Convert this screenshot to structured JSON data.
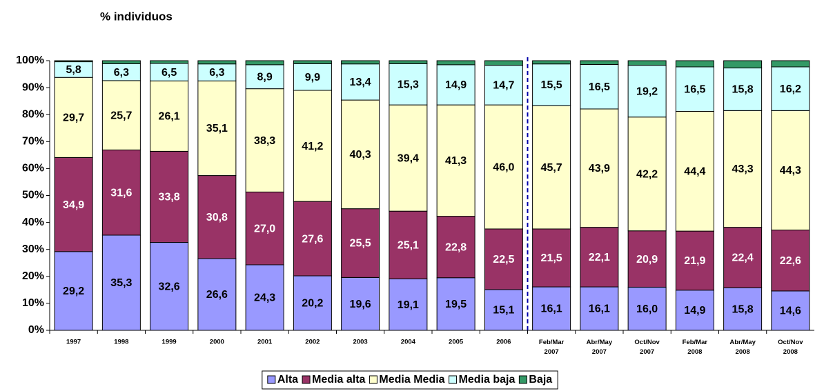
{
  "chart_data": {
    "type": "stacked-bar",
    "title": "% individuos",
    "categories": [
      "1997",
      "1998",
      "1999",
      "2000",
      "2001",
      "2002",
      "2003",
      "2004",
      "2005",
      "2006",
      "Feb/Mar 2007",
      "Abr/May 2007",
      "Oct/Nov 2007",
      "Feb/Mar 2008",
      "Abr/May 2008",
      "Oct/Nov 2008"
    ],
    "series": [
      {
        "name": "Alta",
        "color": "#9999ff",
        "values": [
          29.2,
          35.3,
          32.6,
          26.6,
          24.3,
          20.2,
          19.6,
          19.1,
          19.5,
          15.1,
          16.1,
          16.1,
          16.0,
          14.9,
          15.8,
          14.6
        ],
        "value_labels": [
          "29,2",
          "35,3",
          "32,6",
          "26,6",
          "24,3",
          "20,2",
          "19,6",
          "19,1",
          "19,5",
          "15,1",
          "16,1",
          "16,1",
          "16,0",
          "14,9",
          "15,8",
          "14,6"
        ]
      },
      {
        "name": "Media alta",
        "color": "#993366",
        "values": [
          34.9,
          31.6,
          33.8,
          30.8,
          27.0,
          27.6,
          25.5,
          25.1,
          22.8,
          22.5,
          21.5,
          22.1,
          20.9,
          21.9,
          22.4,
          22.6
        ],
        "value_labels": [
          "34,9",
          "31,6",
          "33,8",
          "30,8",
          "27,0",
          "27,6",
          "25,5",
          "25,1",
          "22,8",
          "22,5",
          "21,5",
          "22,1",
          "20,9",
          "21,9",
          "22,4",
          "22,6"
        ]
      },
      {
        "name": "Media Media",
        "color": "#ffffcc",
        "values": [
          29.7,
          25.7,
          26.1,
          35.1,
          38.3,
          41.2,
          40.3,
          39.4,
          41.3,
          46.0,
          45.7,
          43.9,
          42.2,
          44.4,
          43.3,
          44.3
        ],
        "value_labels": [
          "29,7",
          "25,7",
          "26,1",
          "35,1",
          "38,3",
          "41,2",
          "40,3",
          "39,4",
          "41,3",
          "46,0",
          "45,7",
          "43,9",
          "42,2",
          "44,4",
          "43,3",
          "44,3"
        ]
      },
      {
        "name": "Media baja",
        "color": "#ccffff",
        "values": [
          5.8,
          6.3,
          6.5,
          6.3,
          8.9,
          9.9,
          13.4,
          15.3,
          14.9,
          14.7,
          15.5,
          16.5,
          19.2,
          16.5,
          15.8,
          16.2
        ],
        "value_labels": [
          "5,8",
          "6,3",
          "6,5",
          "6,3",
          "8,9",
          "9,9",
          "13,4",
          "15,3",
          "14,9",
          "14,7",
          "15,5",
          "16,5",
          "19,2",
          "16,5",
          "15,8",
          "16,2"
        ]
      },
      {
        "name": "Baja",
        "color": "#339966",
        "values": [
          0.4,
          1.1,
          1.0,
          1.2,
          1.5,
          1.1,
          1.2,
          1.1,
          1.5,
          1.7,
          1.2,
          1.4,
          1.7,
          2.3,
          2.7,
          2.3
        ]
      }
    ],
    "ylim": [
      0,
      100
    ],
    "yticks": [
      {
        "value": 0,
        "label": "0%"
      },
      {
        "value": 10,
        "label": "10%"
      },
      {
        "value": 20,
        "label": "20%"
      },
      {
        "value": 30,
        "label": "30%"
      },
      {
        "value": 40,
        "label": "40%"
      },
      {
        "value": 50,
        "label": "50%"
      },
      {
        "value": 60,
        "label": "60%"
      },
      {
        "value": 70,
        "label": "70%"
      },
      {
        "value": 80,
        "label": "80%"
      },
      {
        "value": 90,
        "label": "90%"
      },
      {
        "value": 100,
        "label": "100%"
      }
    ],
    "legend": "bottom"
  }
}
